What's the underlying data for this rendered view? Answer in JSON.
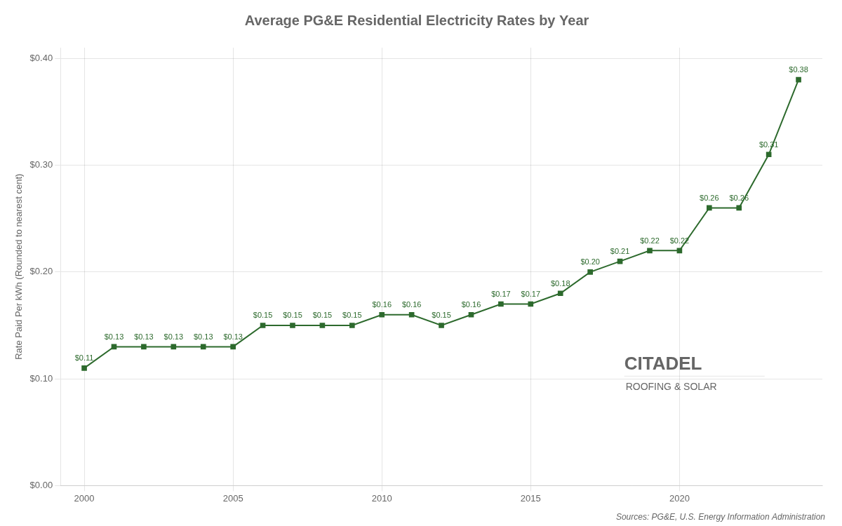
{
  "chart_data": {
    "type": "line",
    "title": "Average PG&E Residential Electricity Rates by Year",
    "ylabel": "Rate Paid Per kWh (Rounded to nearest cent)",
    "x": [
      2000,
      2001,
      2002,
      2003,
      2004,
      2005,
      2006,
      2007,
      2008,
      2009,
      2010,
      2011,
      2012,
      2013,
      2014,
      2015,
      2016,
      2017,
      2018,
      2019,
      2020,
      2021,
      2022,
      2023,
      2024
    ],
    "values": [
      0.11,
      0.13,
      0.13,
      0.13,
      0.13,
      0.13,
      0.15,
      0.15,
      0.15,
      0.15,
      0.16,
      0.16,
      0.15,
      0.16,
      0.17,
      0.17,
      0.18,
      0.2,
      0.21,
      0.22,
      0.22,
      0.26,
      0.26,
      0.31,
      0.38
    ],
    "value_labels": [
      "$0.11",
      "$0.13",
      "$0.13",
      "$0.13",
      "$0.13",
      "$0.13",
      "$0.15",
      "$0.15",
      "$0.15",
      "$0.15",
      "$0.16",
      "$0.16",
      "$0.15",
      "$0.16",
      "$0.17",
      "$0.17",
      "$0.18",
      "$0.20",
      "$0.21",
      "$0.22",
      "$0.22",
      "$0.26",
      "$0.26",
      "$0.31",
      "$0.38"
    ],
    "data_labels": true,
    "color": "#2d6a2d",
    "marker": "square",
    "xlim": [
      1999.2,
      2024.8
    ],
    "xticks": [
      2000,
      2005,
      2010,
      2015,
      2020
    ],
    "ylim": [
      0.0,
      0.41
    ],
    "yticks": [
      {
        "value": 0.0,
        "label": "$0.00"
      },
      {
        "value": 0.1,
        "label": "$0.10"
      },
      {
        "value": 0.2,
        "label": "$0.20"
      },
      {
        "value": 0.3,
        "label": "$0.30"
      },
      {
        "value": 0.4,
        "label": "$0.40"
      }
    ],
    "grid": true,
    "annotations": [
      "Sources: PG&E, U.S. Energy Information Administration",
      "CITADEL",
      "ROOFING & SOLAR"
    ]
  }
}
